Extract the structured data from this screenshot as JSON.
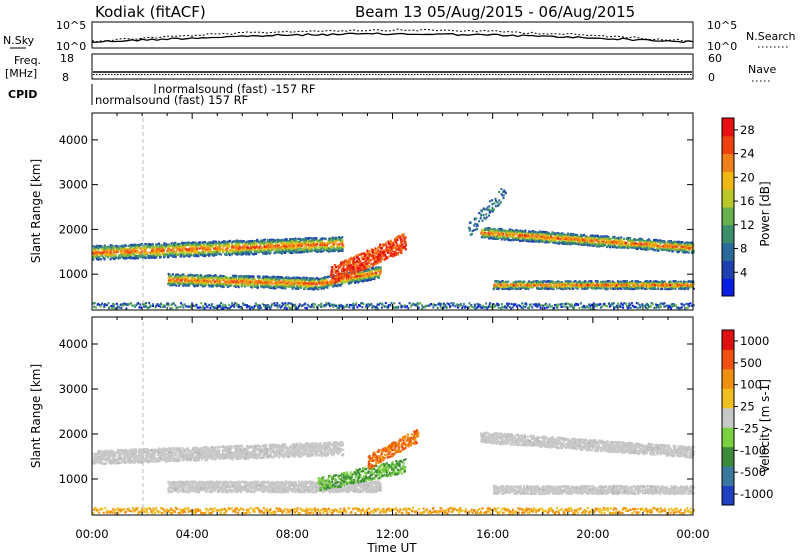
{
  "header": {
    "station": "Kodiak (fitACF)",
    "beam_date": "Beam 13 05/Aug/2015 - 06/Aug/2015"
  },
  "panels": {
    "nsky": {
      "left_label": "N.Sky",
      "left_ticks": [
        "10^5",
        "10^0"
      ],
      "right_label": "N.Search",
      "right_ticks": [
        "10^5",
        "10^0"
      ]
    },
    "freq": {
      "left_label_1": "Freq.",
      "left_label_2": "[MHz]",
      "left_ticks": [
        "18",
        "8"
      ],
      "right_label": "Nave",
      "right_ticks": [
        "60",
        "0"
      ]
    },
    "cpid": {
      "label": "CPID",
      "mode_upper": "normalsound (fast) -157 RF",
      "mode_lower": "normalsound (fast) 157 RF"
    }
  },
  "chart_data": [
    {
      "type": "heatmap",
      "title": "",
      "xlabel": "Time UT",
      "ylabel": "Slant Range [km]",
      "x_ticks": [
        "00:00",
        "04:00",
        "08:00",
        "12:00",
        "16:00",
        "20:00",
        "00:00"
      ],
      "y_ticks": [
        1000,
        2000,
        3000,
        4000
      ],
      "ylim": [
        200,
        4600
      ],
      "xlim_hours": [
        0,
        24
      ],
      "colorbar": {
        "label": "Power [dB]",
        "ticks": [
          4,
          8,
          12,
          16,
          20,
          24,
          28
        ],
        "range": [
          0,
          30
        ],
        "colors": [
          "#0a1ee6",
          "#2040b0",
          "#2a6a9a",
          "#3a8f6a",
          "#68b04a",
          "#b8c828",
          "#f0b810",
          "#f08018",
          "#f04010",
          "#e81010"
        ]
      }
    },
    {
      "type": "heatmap",
      "title": "",
      "xlabel": "Time UT",
      "ylabel": "Slant Range [km]",
      "x_ticks": [
        "00:00",
        "04:00",
        "08:00",
        "12:00",
        "16:00",
        "20:00",
        "00:00"
      ],
      "y_ticks": [
        1000,
        2000,
        3000,
        4000
      ],
      "ylim": [
        200,
        4600
      ],
      "xlim_hours": [
        0,
        24
      ],
      "colorbar": {
        "label": "Velocity [m s-1]",
        "ticks": [
          "1000",
          "500",
          "100",
          "25",
          "-25",
          "-100",
          "-500",
          "-1000"
        ],
        "colors": [
          "#2040c0",
          "#3a78a0",
          "#3a8a3a",
          "#7ad040",
          "#c8c8c8",
          "#f0c020",
          "#f09010",
          "#f05010",
          "#e01010"
        ]
      }
    }
  ]
}
